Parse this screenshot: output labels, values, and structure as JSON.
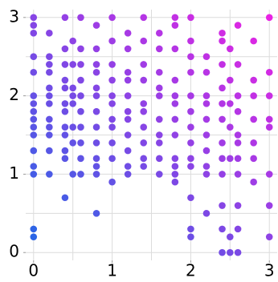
{
  "chart_data": {
    "type": "scatter",
    "xlim": [
      -0.1,
      3.1
    ],
    "ylim": [
      -0.1,
      3.1
    ],
    "xticks": [
      0,
      1,
      2,
      3
    ],
    "yticks": [
      0,
      1,
      2,
      3
    ],
    "grid_step": 0.5,
    "grid": true,
    "color_range": [
      "#1e6ae6",
      "#f020e4"
    ],
    "points": [
      [
        0,
        3
      ],
      [
        0,
        2.9
      ],
      [
        0,
        2.8
      ],
      [
        0,
        2.5
      ],
      [
        0,
        2.3
      ],
      [
        0,
        2
      ],
      [
        0,
        1.9
      ],
      [
        0,
        1.8
      ],
      [
        0,
        1.7
      ],
      [
        0,
        1.6
      ],
      [
        0,
        1.5
      ],
      [
        0,
        1.3
      ],
      [
        0,
        1.1
      ],
      [
        0,
        1
      ],
      [
        0,
        0.3
      ],
      [
        0,
        0.2
      ],
      [
        0.2,
        2.8
      ],
      [
        0.2,
        2.5
      ],
      [
        0.2,
        2.4
      ],
      [
        0.2,
        2.3
      ],
      [
        0.2,
        2.1
      ],
      [
        0.2,
        2
      ],
      [
        0.2,
        1.9
      ],
      [
        0.2,
        1.7
      ],
      [
        0.2,
        1.6
      ],
      [
        0.2,
        1.5
      ],
      [
        0.2,
        1.3
      ],
      [
        0.2,
        1
      ],
      [
        0.4,
        3
      ],
      [
        0.4,
        2.6
      ],
      [
        0.4,
        2.4
      ],
      [
        0.4,
        2.2
      ],
      [
        0.4,
        2.1
      ],
      [
        0.4,
        1.9
      ],
      [
        0.4,
        1.8
      ],
      [
        0.4,
        1.6
      ],
      [
        0.4,
        1.5
      ],
      [
        0.4,
        1.3
      ],
      [
        0.4,
        1.2
      ],
      [
        0.4,
        0.7
      ],
      [
        0.5,
        2.7
      ],
      [
        0.5,
        2.4
      ],
      [
        0.5,
        2.1
      ],
      [
        0.5,
        2
      ],
      [
        0.5,
        1.9
      ],
      [
        0.5,
        1.6
      ],
      [
        0.5,
        1.4
      ],
      [
        0.5,
        1
      ],
      [
        0.6,
        3
      ],
      [
        0.6,
        2.6
      ],
      [
        0.6,
        2.4
      ],
      [
        0.6,
        2.2
      ],
      [
        0.6,
        2
      ],
      [
        0.6,
        1.8
      ],
      [
        0.6,
        1.6
      ],
      [
        0.6,
        1.4
      ],
      [
        0.6,
        1.2
      ],
      [
        0.6,
        1
      ],
      [
        0.8,
        2.9
      ],
      [
        0.8,
        2.6
      ],
      [
        0.8,
        2.4
      ],
      [
        0.8,
        2.3
      ],
      [
        0.8,
        2.1
      ],
      [
        0.8,
        2
      ],
      [
        0.8,
        1.8
      ],
      [
        0.8,
        1.6
      ],
      [
        0.8,
        1.4
      ],
      [
        0.8,
        1.2
      ],
      [
        0.8,
        1.1
      ],
      [
        0.8,
        1
      ],
      [
        0.8,
        0.5
      ],
      [
        1,
        3
      ],
      [
        1,
        2.7
      ],
      [
        1,
        2.4
      ],
      [
        1,
        2.2
      ],
      [
        1,
        2
      ],
      [
        1,
        1.9
      ],
      [
        1,
        1.7
      ],
      [
        1,
        1.6
      ],
      [
        1,
        1.4
      ],
      [
        1,
        1.2
      ],
      [
        1,
        0.9
      ],
      [
        1.2,
        2.8
      ],
      [
        1.2,
        2.6
      ],
      [
        1.2,
        2.3
      ],
      [
        1.2,
        2.2
      ],
      [
        1.2,
        2
      ],
      [
        1.2,
        1.8
      ],
      [
        1.2,
        1.7
      ],
      [
        1.2,
        1.5
      ],
      [
        1.2,
        1.3
      ],
      [
        1.2,
        1.1
      ],
      [
        1.2,
        1
      ],
      [
        1.4,
        3
      ],
      [
        1.4,
        2.7
      ],
      [
        1.4,
        2.4
      ],
      [
        1.4,
        2.2
      ],
      [
        1.4,
        1.9
      ],
      [
        1.4,
        1.8
      ],
      [
        1.4,
        1.6
      ],
      [
        1.4,
        1.4
      ],
      [
        1.4,
        1.2
      ],
      [
        1.4,
        1.1
      ],
      [
        1.6,
        2.8
      ],
      [
        1.6,
        2.6
      ],
      [
        1.6,
        2.3
      ],
      [
        1.6,
        2.1
      ],
      [
        1.6,
        2
      ],
      [
        1.6,
        1.7
      ],
      [
        1.6,
        1.5
      ],
      [
        1.6,
        1.4
      ],
      [
        1.6,
        1.2
      ],
      [
        1.6,
        1
      ],
      [
        1.8,
        3
      ],
      [
        1.8,
        2.9
      ],
      [
        1.8,
        2.6
      ],
      [
        1.8,
        2.2
      ],
      [
        1.8,
        2
      ],
      [
        1.8,
        1.9
      ],
      [
        1.8,
        1.7
      ],
      [
        1.8,
        1.5
      ],
      [
        1.8,
        1.2
      ],
      [
        1.8,
        1.1
      ],
      [
        1.8,
        1
      ],
      [
        1.8,
        0.9
      ],
      [
        2,
        3
      ],
      [
        2,
        2.7
      ],
      [
        2,
        2.5
      ],
      [
        2,
        2.3
      ],
      [
        2,
        2
      ],
      [
        2,
        1.8
      ],
      [
        2,
        1.6
      ],
      [
        2,
        1.4
      ],
      [
        2,
        1.2
      ],
      [
        2,
        1.1
      ],
      [
        2,
        0.7
      ],
      [
        2,
        0.3
      ],
      [
        2,
        0.2
      ],
      [
        2.2,
        2.5
      ],
      [
        2.2,
        2.3
      ],
      [
        2.2,
        2
      ],
      [
        2.2,
        1.9
      ],
      [
        2.2,
        1.7
      ],
      [
        2.2,
        1.5
      ],
      [
        2.2,
        1.3
      ],
      [
        2.2,
        1.1
      ],
      [
        2.2,
        1
      ],
      [
        2.2,
        0.5
      ],
      [
        2.4,
        2.8
      ],
      [
        2.4,
        2.7
      ],
      [
        2.4,
        2.4
      ],
      [
        2.4,
        2.1
      ],
      [
        2.4,
        1.9
      ],
      [
        2.4,
        1.7
      ],
      [
        2.4,
        1.4
      ],
      [
        2.4,
        1.2
      ],
      [
        2.4,
        1
      ],
      [
        2.4,
        0.6
      ],
      [
        2.4,
        0.3
      ],
      [
        2.4,
        0
      ],
      [
        2.5,
        2.6
      ],
      [
        2.5,
        2.2
      ],
      [
        2.5,
        1.9
      ],
      [
        2.5,
        1.6
      ],
      [
        2.5,
        1.2
      ],
      [
        2.5,
        0.2
      ],
      [
        2.5,
        0
      ],
      [
        2.6,
        2.9
      ],
      [
        2.6,
        2.4
      ],
      [
        2.6,
        2
      ],
      [
        2.6,
        1.8
      ],
      [
        2.6,
        1.5
      ],
      [
        2.6,
        1.4
      ],
      [
        2.6,
        1.2
      ],
      [
        2.6,
        1
      ],
      [
        2.6,
        0.6
      ],
      [
        2.6,
        0.3
      ],
      [
        2.6,
        0
      ],
      [
        2.8,
        2.7
      ],
      [
        2.8,
        2.2
      ],
      [
        2.8,
        2
      ],
      [
        2.8,
        1.7
      ],
      [
        2.8,
        1.4
      ],
      [
        2.8,
        1.2
      ],
      [
        2.8,
        0.9
      ],
      [
        3,
        3
      ],
      [
        3,
        2.3
      ],
      [
        3,
        2
      ],
      [
        3,
        1.7
      ],
      [
        3,
        1.6
      ],
      [
        3,
        1
      ],
      [
        3,
        0.6
      ],
      [
        3,
        0.2
      ]
    ]
  }
}
